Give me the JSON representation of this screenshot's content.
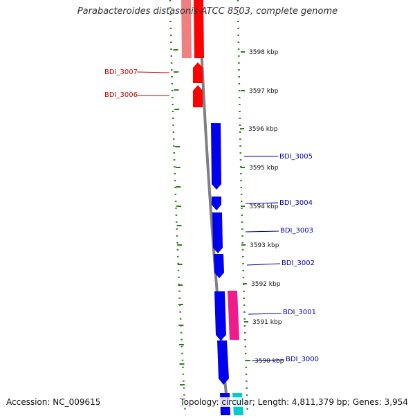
{
  "title": "Parabacteroides distasonis ATCC 8503, complete genome",
  "footer": {
    "accession": "Accession: NC_009615",
    "summary": "Topology: circular; Length: 4,811,379 bp; Genes: 3,954"
  },
  "colors": {
    "forward_gene": "#ff0000",
    "forward_gene_light": "#f08080",
    "reverse_gene": "#0000ee",
    "pink_feature": "#ee1c8a",
    "cyan_feature": "#00cccc",
    "backbone": "#808080",
    "tick": "#2e7d1e",
    "forward_label": "#cc0000",
    "reverse_label": "#0000aa"
  },
  "scale_labels": [
    {
      "text": "3598 kbp",
      "kbp": 3598
    },
    {
      "text": "3597 kbp",
      "kbp": 3597
    },
    {
      "text": "3596 kbp",
      "kbp": 3596
    },
    {
      "text": "3595 kbp",
      "kbp": 3595
    },
    {
      "text": "3594 kbp",
      "kbp": 3594
    },
    {
      "text": "3593 kbp",
      "kbp": 3593
    },
    {
      "text": "3592 kbp",
      "kbp": 3592
    },
    {
      "text": "3591 kbp",
      "kbp": 3591
    },
    {
      "text": "3590 kbp",
      "kbp": 3590
    }
  ],
  "gene_labels": [
    {
      "text": "BDI_3007",
      "strand": "forward"
    },
    {
      "text": "BDI_3006",
      "strand": "forward"
    },
    {
      "text": "BDI_3005",
      "strand": "reverse"
    },
    {
      "text": "BDI_3004",
      "strand": "reverse"
    },
    {
      "text": "BDI_3003",
      "strand": "reverse"
    },
    {
      "text": "BDI_3002",
      "strand": "reverse"
    },
    {
      "text": "BDI_3001",
      "strand": "reverse"
    },
    {
      "text": "BDI_3000",
      "strand": "reverse"
    }
  ]
}
